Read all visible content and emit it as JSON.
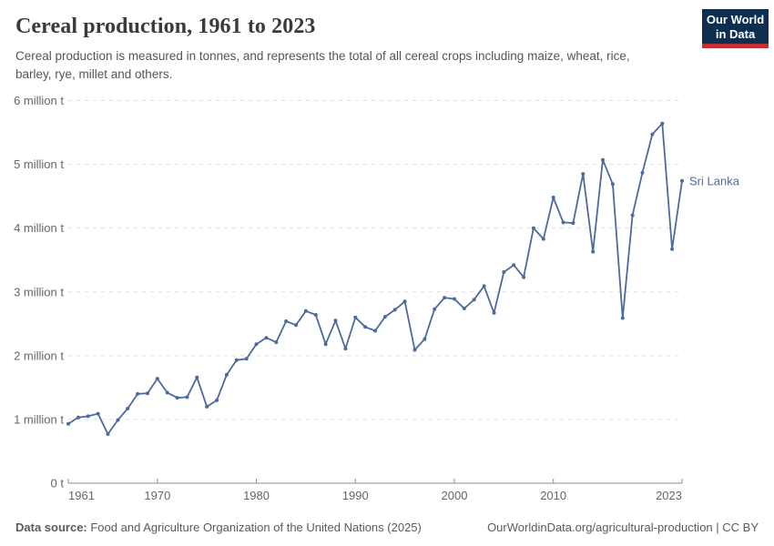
{
  "header": {
    "title": "Cereal production, 1961 to 2023",
    "subtitle": "Cereal production is measured in tonnes, and represents the total of all cereal crops including maize, wheat, rice, barley, rye, millet and others.",
    "logo": {
      "line1": "Our World",
      "line2": "in Data"
    }
  },
  "colors": {
    "line": "#4c6a9c",
    "entity_label": "#4c6a9c",
    "gridline": "#dddddd",
    "axis": "#8f8f8f",
    "tick_text": "#666666"
  },
  "chart_data": {
    "type": "line",
    "title": "Cereal production, 1961 to 2023",
    "unit": "million tonnes",
    "entity": "Sri Lanka",
    "grid": "horizontal dashed",
    "legend_position": "end-of-line entity label",
    "ylim_million_tonnes": [
      0,
      6
    ],
    "x_ticks": [
      1961,
      1970,
      1980,
      1990,
      2000,
      2010,
      2023
    ],
    "y_ticks": [
      {
        "value": 0,
        "label": "0 t"
      },
      {
        "value": 1,
        "label": "1 million t"
      },
      {
        "value": 2,
        "label": "2 million t"
      },
      {
        "value": 3,
        "label": "3 million t"
      },
      {
        "value": 4,
        "label": "4 million t"
      },
      {
        "value": 5,
        "label": "5 million t"
      },
      {
        "value": 6,
        "label": "6 million t"
      }
    ],
    "x": [
      1961,
      1962,
      1963,
      1964,
      1965,
      1966,
      1967,
      1968,
      1969,
      1970,
      1971,
      1972,
      1973,
      1974,
      1975,
      1976,
      1977,
      1978,
      1979,
      1980,
      1981,
      1982,
      1983,
      1984,
      1985,
      1986,
      1987,
      1988,
      1989,
      1990,
      1991,
      1992,
      1993,
      1994,
      1995,
      1996,
      1997,
      1998,
      1999,
      2000,
      2001,
      2002,
      2003,
      2004,
      2005,
      2006,
      2007,
      2008,
      2009,
      2010,
      2011,
      2012,
      2013,
      2014,
      2015,
      2016,
      2017,
      2018,
      2019,
      2020,
      2021,
      2022,
      2023
    ],
    "series": [
      {
        "name": "Sri Lanka",
        "values_million_tonnes": [
          0.93,
          1.03,
          1.05,
          1.09,
          0.77,
          0.99,
          1.17,
          1.4,
          1.41,
          1.64,
          1.42,
          1.34,
          1.35,
          1.66,
          1.2,
          1.3,
          1.7,
          1.93,
          1.95,
          2.18,
          2.28,
          2.21,
          2.54,
          2.48,
          2.7,
          2.64,
          2.18,
          2.55,
          2.11,
          2.6,
          2.45,
          2.39,
          2.61,
          2.72,
          2.85,
          2.09,
          2.26,
          2.73,
          2.91,
          2.89,
          2.74,
          2.88,
          3.09,
          2.67,
          3.31,
          3.42,
          3.23,
          4.0,
          3.83,
          4.48,
          4.09,
          4.08,
          4.85,
          3.63,
          5.07,
          4.69,
          2.59,
          4.2,
          4.87,
          5.47,
          5.64,
          3.67,
          4.74
        ]
      }
    ]
  },
  "footer": {
    "datasource_label": "Data source:",
    "datasource_text": " Food and Agriculture Organization of the United Nations (2025)",
    "credit": "OurWorldinData.org/agricultural-production | CC BY"
  }
}
